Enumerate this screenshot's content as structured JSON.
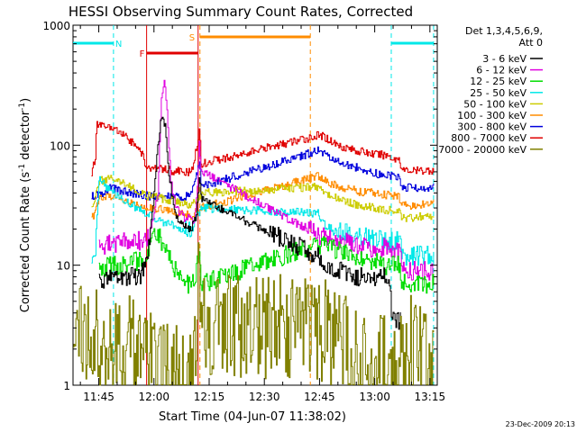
{
  "chart_data": {
    "type": "line",
    "title": "HESSI Observing Summary Count Rates, Corrected",
    "xlabel": "Start Time (04-Jun-07 11:38:02)",
    "ylabel": "Corrected Count Rate (s",
    "ylabel_sup1": "-1",
    "ylabel_mid": " detector",
    "ylabel_sup2": "-1",
    "ylabel_end": ")",
    "yscale": "log",
    "xlim_minutes": [
      698.0,
      797.0
    ],
    "ylim": [
      1,
      1000
    ],
    "x_ticks": [
      "11:45",
      "12:00",
      "12:15",
      "12:30",
      "12:45",
      "13:00",
      "13:15"
    ],
    "x_tick_minutes": [
      705,
      720,
      735,
      750,
      765,
      780,
      795
    ],
    "y_tick_labels": [
      "1",
      "10",
      "100",
      "1000"
    ],
    "footer": "23-Dec-2009 20:13",
    "legend": {
      "header1": "Det 1,3,4,5,6,9,",
      "header2": "Att 0",
      "entries": [
        {
          "label": "3 - 6 keV",
          "color": "#000000"
        },
        {
          "label": "6 - 12 keV",
          "color": "#e000e0"
        },
        {
          "label": "12 - 25 keV",
          "color": "#00dd00"
        },
        {
          "label": "25 - 50 keV",
          "color": "#00e8e8"
        },
        {
          "label": "50 - 100 keV",
          "color": "#cccc00"
        },
        {
          "label": "100 - 300 keV",
          "color": "#ff8c00"
        },
        {
          "label": "300 - 800 keV",
          "color": "#0000dd"
        },
        {
          "label": "800 - 7000 keV",
          "color": "#e00000"
        },
        {
          "label": "7000 - 20000 keV",
          "color": "#808000"
        }
      ]
    },
    "flags": [
      {
        "label": "N",
        "color": "#00e8e8",
        "kind": "night",
        "start": 698.0,
        "end": 709.0
      },
      {
        "label": "F",
        "color": "#e00000",
        "kind": "flare",
        "start": 718.0,
        "end": 732.0
      },
      {
        "label": "S",
        "color": "#ff8c00",
        "kind": "saa",
        "start": 732.5,
        "end": 762.5
      },
      {
        "label": "",
        "color": "#00e8e8",
        "kind": "night",
        "start": 784.5,
        "end": 796.0
      }
    ],
    "segments": [
      {
        "start": 703.0,
        "end": 733.5
      },
      {
        "start": 764.0,
        "end": 796.0
      }
    ],
    "series": [
      {
        "color": "#e00000",
        "values": [
          [
            703.0,
            60
          ],
          [
            703.5,
            70
          ],
          [
            704,
            72
          ],
          [
            704.3,
            150
          ],
          [
            707,
            145
          ],
          [
            711,
            125
          ],
          [
            715,
            100
          ],
          [
            717,
            80
          ],
          [
            718,
            65
          ],
          [
            722,
            63
          ],
          [
            726,
            61
          ],
          [
            729,
            59
          ],
          [
            730.5,
            62
          ],
          [
            731.5,
            95
          ],
          [
            732.3,
            130
          ],
          [
            732.8,
            70
          ],
          [
            764.5,
            120
          ],
          [
            766,
            118
          ],
          [
            770,
            100
          ],
          [
            775,
            90
          ],
          [
            780,
            84
          ],
          [
            784,
            82
          ],
          [
            784.5,
            78
          ],
          [
            785,
            76
          ],
          [
            786.5,
            78
          ],
          [
            787.5,
            62
          ],
          [
            790,
            61
          ],
          [
            796,
            62
          ]
        ]
      },
      {
        "color": "#0000dd",
        "values": [
          [
            703.0,
            38
          ],
          [
            706,
            40
          ],
          [
            708,
            44
          ],
          [
            712,
            41
          ],
          [
            716,
            39
          ],
          [
            718,
            38
          ],
          [
            722,
            37
          ],
          [
            726,
            37
          ],
          [
            730,
            38
          ],
          [
            731.5,
            55
          ],
          [
            732.3,
            75
          ],
          [
            732.8,
            45
          ],
          [
            764.5,
            90
          ],
          [
            768,
            80
          ],
          [
            772,
            70
          ],
          [
            776,
            64
          ],
          [
            780,
            58
          ],
          [
            786.5,
            55
          ],
          [
            787.5,
            45
          ],
          [
            790,
            44
          ],
          [
            796,
            45
          ]
        ]
      },
      {
        "color": "#ff8c00",
        "values": [
          [
            703.0,
            25
          ],
          [
            704,
            27
          ],
          [
            705,
            35
          ],
          [
            707,
            38
          ],
          [
            711,
            36
          ],
          [
            715,
            33
          ],
          [
            718,
            30
          ],
          [
            722,
            29
          ],
          [
            725,
            28
          ],
          [
            728,
            27
          ],
          [
            730,
            26
          ],
          [
            731.5,
            28
          ],
          [
            732.8,
            30
          ],
          [
            764.5,
            55
          ],
          [
            768,
            48
          ],
          [
            772,
            44
          ],
          [
            776,
            41
          ],
          [
            780,
            40
          ],
          [
            786.5,
            37
          ],
          [
            787.5,
            32
          ],
          [
            790,
            31
          ],
          [
            796,
            33
          ]
        ]
      },
      {
        "color": "#cccc00",
        "values": [
          [
            703.0,
            30
          ],
          [
            705,
            50
          ],
          [
            708,
            53
          ],
          [
            712,
            48
          ],
          [
            715,
            43
          ],
          [
            718,
            38
          ],
          [
            722,
            36
          ],
          [
            726,
            34
          ],
          [
            730,
            31
          ],
          [
            731.5,
            35
          ],
          [
            732.8,
            40
          ],
          [
            764.5,
            45
          ],
          [
            768,
            38
          ],
          [
            772,
            34
          ],
          [
            776,
            31
          ],
          [
            780,
            30
          ],
          [
            786.5,
            28
          ],
          [
            787.5,
            25
          ],
          [
            790,
            25
          ],
          [
            796,
            26
          ]
        ]
      },
      {
        "color": "#00e8e8",
        "values": [
          [
            703.0,
            11
          ],
          [
            704,
            12
          ],
          [
            705,
            52
          ],
          [
            707,
            45
          ],
          [
            710,
            38
          ],
          [
            713,
            33
          ],
          [
            716,
            29
          ],
          [
            718,
            27
          ],
          [
            721,
            24
          ],
          [
            724,
            22
          ],
          [
            727,
            20
          ],
          [
            730,
            19
          ],
          [
            731.5,
            25
          ],
          [
            732.8,
            30
          ],
          [
            764.5,
            27
          ],
          [
            766,
            22
          ],
          [
            770,
            19
          ],
          [
            774,
            18
          ],
          [
            778,
            17
          ],
          [
            782,
            16
          ],
          [
            786.5,
            16
          ],
          [
            787.5,
            12
          ],
          [
            790,
            12
          ],
          [
            796,
            12
          ]
        ]
      },
      {
        "color": "#e000e0",
        "values": [
          [
            705,
            14
          ],
          [
            708,
            15
          ],
          [
            712,
            16
          ],
          [
            716,
            16
          ],
          [
            718,
            16
          ],
          [
            719,
            20
          ],
          [
            721,
            40
          ],
          [
            722,
            260
          ],
          [
            722.7,
            350
          ],
          [
            723.5,
            200
          ],
          [
            724.5,
            50
          ],
          [
            726,
            30
          ],
          [
            728,
            25
          ],
          [
            730,
            24
          ],
          [
            731,
            22
          ],
          [
            731.8,
            45
          ],
          [
            732.3,
            110
          ],
          [
            732.8,
            60
          ],
          [
            764.5,
            18
          ],
          [
            767,
            17
          ],
          [
            771,
            16
          ],
          [
            775,
            15
          ],
          [
            779,
            14
          ],
          [
            783,
            14
          ],
          [
            786.5,
            13
          ],
          [
            787.5,
            9
          ],
          [
            790,
            9
          ],
          [
            796,
            9
          ]
        ]
      },
      {
        "color": "#00dd00",
        "values": [
          [
            705,
            9
          ],
          [
            708,
            10
          ],
          [
            712,
            10
          ],
          [
            716,
            11
          ],
          [
            718,
            12
          ],
          [
            719,
            16
          ],
          [
            720,
            20
          ],
          [
            721.5,
            17
          ],
          [
            723,
            13
          ],
          [
            725,
            10
          ],
          [
            727,
            8
          ],
          [
            729,
            7
          ],
          [
            731,
            7
          ],
          [
            732.3,
            15
          ],
          [
            732.8,
            7
          ],
          [
            764.5,
            15
          ],
          [
            767,
            14
          ],
          [
            771,
            13
          ],
          [
            775,
            12
          ],
          [
            779,
            11
          ],
          [
            783,
            10
          ],
          [
            786.5,
            10
          ],
          [
            787.5,
            7
          ],
          [
            790,
            7
          ],
          [
            796,
            7
          ]
        ]
      },
      {
        "color": "#000000",
        "values": [
          [
            705,
            7
          ],
          [
            708,
            8
          ],
          [
            712,
            8
          ],
          [
            716,
            8
          ],
          [
            718,
            10
          ],
          [
            719,
            20
          ],
          [
            720,
            40
          ],
          [
            721,
            100
          ],
          [
            722,
            170
          ],
          [
            723,
            150
          ],
          [
            724,
            60
          ],
          [
            725,
            35
          ],
          [
            726,
            25
          ],
          [
            728,
            21
          ],
          [
            730,
            20
          ],
          [
            731.5,
            25
          ],
          [
            732.3,
            60
          ],
          [
            732.8,
            35
          ],
          [
            764.5,
            12
          ],
          [
            767,
            10
          ],
          [
            771,
            9
          ],
          [
            775,
            8
          ],
          [
            779,
            8
          ],
          [
            783,
            8
          ],
          [
            784,
            7
          ],
          [
            784.5,
            4
          ],
          [
            785,
            3.5
          ],
          [
            787,
            3.5
          ]
        ]
      },
      {
        "color": "#808000",
        "values": [
          [
            698,
            3
          ],
          [
            703,
            3
          ],
          [
            707,
            2.5
          ],
          [
            710,
            2
          ],
          [
            714,
            2
          ],
          [
            718,
            1.5
          ],
          [
            722,
            1.4
          ],
          [
            726,
            1.4
          ],
          [
            729,
            1.5
          ],
          [
            731,
            1.8
          ],
          [
            731.5,
            2.5
          ],
          [
            732.3,
            10
          ],
          [
            732.8,
            3
          ],
          [
            764.5,
            3
          ],
          [
            766,
            3
          ],
          [
            769,
            2.5
          ],
          [
            772,
            2
          ],
          [
            776,
            1.5
          ],
          [
            780,
            1.5
          ],
          [
            784,
            1.5
          ],
          [
            787,
            2.5
          ],
          [
            790,
            2
          ],
          [
            793,
            1.5
          ],
          [
            796,
            1.3
          ]
        ]
      }
    ]
  }
}
